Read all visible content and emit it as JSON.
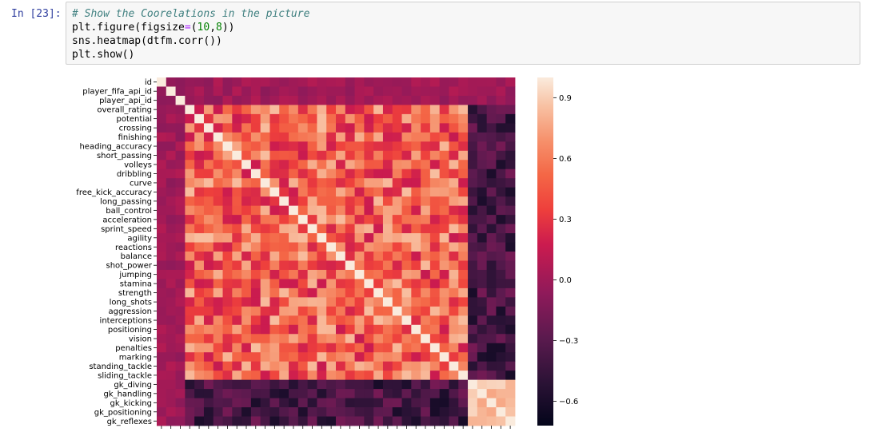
{
  "prompt": "In [23]:",
  "code": {
    "comment": "# Show the Coorelations in the picture",
    "line2": {
      "a": "plt.figure(figsize",
      "op": "=",
      "b": "(",
      "n1": "10",
      "c": ",",
      "n2": "8",
      "d": "))"
    },
    "line3": "sns.heatmap(dtfm.corr())",
    "line4": "plt.show()"
  },
  "chart_data": {
    "type": "heatmap",
    "labels": [
      "id",
      "player_fifa_api_id",
      "player_api_id",
      "overall_rating",
      "potential",
      "crossing",
      "finishing",
      "heading_accuracy",
      "short_passing",
      "volleys",
      "dribbling",
      "curve",
      "free_kick_accuracy",
      "long_passing",
      "ball_control",
      "acceleration",
      "sprint_speed",
      "agility",
      "reactions",
      "balance",
      "shot_power",
      "jumping",
      "stamina",
      "strength",
      "long_shots",
      "aggression",
      "interceptions",
      "positioning",
      "vision",
      "penalties",
      "marking",
      "standing_tackle",
      "sliding_tackle",
      "gk_diving",
      "gk_handling",
      "gk_kicking",
      "gk_positioning",
      "gk_reflexes"
    ],
    "colorbar": {
      "ticks": [
        0.9,
        0.6,
        0.3,
        0.0,
        -0.3,
        -0.6
      ],
      "tick_labels": [
        "0.9",
        "0.6",
        "0.3",
        "0.0",
        "−0.3",
        "−0.6"
      ],
      "range": [
        -0.72,
        1.0
      ],
      "colormap": "rocket"
    },
    "groups": {
      "meta": [
        0,
        1,
        2
      ],
      "gk": [
        33,
        34,
        35,
        36,
        37
      ]
    }
  }
}
